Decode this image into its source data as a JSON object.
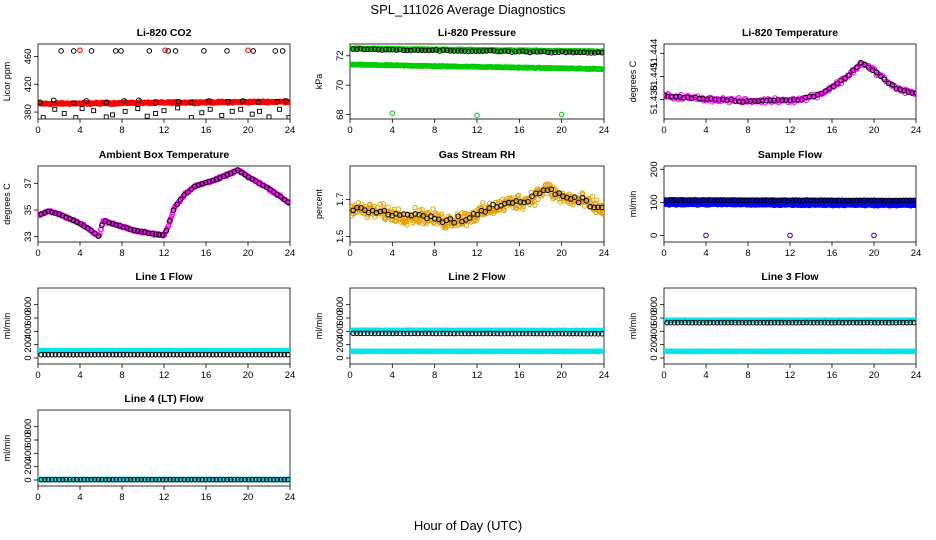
{
  "figure": {
    "title": "SPL_111026  Average Diagnostics",
    "xlabel": "Hour of Day (UTC)"
  },
  "colors": {
    "black": "#000000",
    "red": "#ff0000",
    "green": "#00cc00",
    "magenta": "#ff00ff",
    "orange": "#e6a000",
    "blue": "#0000ff",
    "cyan": "#00e5ee"
  },
  "chart_data": [
    {
      "type": "scatter",
      "title": "Li-820 CO2",
      "ylabel": "Licor ppm",
      "xlim": [
        0,
        24
      ],
      "xticks": [
        0,
        4,
        8,
        12,
        16,
        20,
        24
      ],
      "ylim": [
        370,
        478
      ],
      "yticks": [
        380,
        420,
        460
      ],
      "series": [
        {
          "color": "#ff0000",
          "marker": "dense-band",
          "x_range": [
            0,
            24
          ],
          "y_start": 392,
          "y_end": 395,
          "noise": 2
        },
        {
          "color": "#000000",
          "marker": "circle",
          "x": [
            0.2,
            1.5,
            3.4,
            4.6,
            6.5,
            8.2,
            9.6,
            11.2,
            13.4,
            14.6,
            16.3,
            18.1,
            19.5,
            21.0,
            22.8,
            23.6
          ],
          "y": [
            394,
            397,
            393,
            396,
            394,
            396,
            397,
            393,
            395,
            394,
            396,
            395,
            396,
            394,
            395,
            396
          ]
        },
        {
          "color": "#000000",
          "marker": "circle",
          "x": [
            2.2,
            3.4,
            5.1,
            7.4,
            7.9,
            10.6,
            12.4,
            13.1,
            15.8,
            18.0,
            20.5,
            22.6,
            23.3
          ],
          "y": [
            468,
            468,
            468,
            468,
            468,
            468,
            468,
            468,
            468,
            468,
            468,
            468,
            468
          ]
        },
        {
          "color": "#ff0000",
          "marker": "circle",
          "x": [
            4.0,
            12.1,
            20.0
          ],
          "y": [
            469,
            469,
            469
          ]
        },
        {
          "color": "#000000",
          "marker": "square",
          "x": [
            0.5,
            1.6,
            2.5,
            3.6,
            4.2,
            5.3,
            6.5,
            7.1,
            8.3,
            9.5,
            10.4,
            11.2,
            12.0,
            13.3,
            14.6,
            15.6,
            16.4,
            17.5,
            18.5,
            19.3,
            20.4,
            21.1,
            22.0,
            23.0,
            23.9
          ],
          "y": [
            372,
            384,
            378,
            372,
            385,
            382,
            373,
            376,
            381,
            385,
            374,
            378,
            382,
            386,
            372,
            379,
            384,
            375,
            381,
            384,
            377,
            381,
            373,
            384,
            372
          ]
        }
      ]
    },
    {
      "type": "scatter",
      "title": "Li-820 Pressure",
      "ylabel": "kPa",
      "xlim": [
        0,
        24
      ],
      "xticks": [
        0,
        4,
        8,
        12,
        16,
        20,
        24
      ],
      "ylim": [
        67.7,
        72.8
      ],
      "yticks": [
        68,
        70,
        72
      ],
      "series": [
        {
          "color": "#00cc00",
          "marker": "dense-band",
          "x_range": [
            0,
            24
          ],
          "y_start": 72.5,
          "y_end": 72.3,
          "noise": 0.05
        },
        {
          "color": "#00cc00",
          "marker": "dense-band",
          "x_range": [
            0,
            24
          ],
          "y_start": 71.4,
          "y_end": 71.1,
          "noise": 0.05
        },
        {
          "color": "#000000",
          "marker": "circle",
          "x_range": [
            0.3,
            23.8
          ],
          "count": 70,
          "y_start": 72.45,
          "y_end": 72.2,
          "noise": 0.06
        },
        {
          "color": "#00cc00",
          "marker": "circle",
          "x": [
            4.0,
            12.0,
            20.0
          ],
          "y": [
            68.1,
            67.95,
            68.0
          ]
        }
      ]
    },
    {
      "type": "scatter",
      "title": "Li-820 Temperature",
      "ylabel": "degrees C",
      "xlim": [
        0,
        24
      ],
      "xticks": [
        0,
        4,
        8,
        12,
        16,
        20,
        24
      ],
      "ylim": [
        51.4355,
        51.4452
      ],
      "yticks": [
        51.438,
        51.441,
        51.444
      ],
      "series": [
        {
          "color": "#ff00ff",
          "marker": "circle",
          "profile": "temp-peak",
          "count": 210,
          "noise": 0.00045
        },
        {
          "color": "#000000",
          "marker": "circle",
          "profile": "temp-peak",
          "count": 65,
          "noise": 0.00018
        }
      ]
    },
    {
      "type": "scatter",
      "title": "Ambient Box Temperature",
      "ylabel": "degrees C",
      "xlim": [
        0,
        24
      ],
      "xticks": [
        0,
        4,
        8,
        12,
        16,
        20,
        24
      ],
      "ylim": [
        32.6,
        38.3
      ],
      "yticks": [
        33,
        35,
        37
      ],
      "series": [
        {
          "color": "#ff00ff",
          "marker": "dense-band",
          "profile": "ambient",
          "x_range": [
            0,
            24
          ],
          "noise": 0.12
        },
        {
          "color": "#000000",
          "marker": "circle",
          "profile": "ambient",
          "x_range": [
            0.3,
            23.8
          ],
          "count": 70,
          "noise": 0.03
        }
      ]
    },
    {
      "type": "scatter",
      "title": "Gas Stream RH",
      "ylabel": "percent",
      "xlim": [
        0,
        24
      ],
      "xticks": [
        0,
        4,
        8,
        12,
        16,
        20,
        24
      ],
      "ylim": [
        1.47,
        1.88
      ],
      "yticks": [
        1.5,
        1.7
      ],
      "series": [
        {
          "color": "#e6a000",
          "marker": "dense-band",
          "profile": "rh",
          "x_range": [
            0,
            24
          ],
          "noise": 0.06
        },
        {
          "color": "#000000",
          "marker": "circle",
          "profile": "rh",
          "x_range": [
            0.3,
            23.8
          ],
          "count": 65,
          "noise": 0.025
        }
      ]
    },
    {
      "type": "scatter",
      "title": "Sample Flow",
      "ylabel": "ml/min",
      "xlim": [
        0,
        24
      ],
      "xticks": [
        0,
        4,
        8,
        12,
        16,
        20,
        24
      ],
      "ylim": [
        -20,
        210
      ],
      "yticks": [
        0,
        100,
        200
      ],
      "series": [
        {
          "color": "#0000ff",
          "marker": "dense-band",
          "x_range": [
            0,
            24
          ],
          "y_start": 95,
          "y_end": 92,
          "noise": 4
        },
        {
          "color": "#0000ff",
          "marker": "dense-band",
          "x_range": [
            0,
            24
          ],
          "y_start": 107,
          "y_end": 104,
          "noise": 2
        },
        {
          "color": "#000000",
          "marker": "circle",
          "x_range": [
            0.3,
            23.8
          ],
          "count": 70,
          "y_start": 107,
          "y_end": 106,
          "noise": 1
        },
        {
          "color": "#0000ff",
          "marker": "circle",
          "x": [
            4.0,
            12.0,
            20.0
          ],
          "y": [
            0,
            0,
            0
          ]
        }
      ]
    },
    {
      "type": "scatter",
      "title": "Line 1 Flow",
      "ylabel": "ml/min",
      "xlim": [
        0,
        24
      ],
      "xticks": [
        0,
        4,
        8,
        12,
        16,
        20,
        24
      ],
      "ylim": [
        -90,
        1050
      ],
      "yticks": [
        0,
        200,
        400,
        600,
        800
      ],
      "series": [
        {
          "color": "#00e5ee",
          "marker": "dense-band",
          "x_range": [
            0,
            24
          ],
          "y_start": 110,
          "y_end": 110,
          "noise": 6
        },
        {
          "color": "#000000",
          "marker": "circle",
          "x_range": [
            0.3,
            23.8
          ],
          "count": 70,
          "y_start": 50,
          "y_end": 50,
          "noise": 0
        }
      ]
    },
    {
      "type": "scatter",
      "title": "Line 2 Flow",
      "ylabel": "ml/min",
      "xlim": [
        0,
        24
      ],
      "xticks": [
        0,
        4,
        8,
        12,
        16,
        20,
        24
      ],
      "ylim": [
        -90,
        1050
      ],
      "yticks": [
        0,
        200,
        400,
        600,
        800
      ],
      "series": [
        {
          "color": "#00e5ee",
          "marker": "dense-band",
          "x_range": [
            0,
            24
          ],
          "y_start": 415,
          "y_end": 412,
          "noise": 6
        },
        {
          "color": "#00e5ee",
          "marker": "dense-band",
          "x_range": [
            0,
            24
          ],
          "y_start": 100,
          "y_end": 100,
          "noise": 5
        },
        {
          "color": "#000000",
          "marker": "circle",
          "x_range": [
            0.3,
            23.8
          ],
          "count": 70,
          "y_start": 370,
          "y_end": 365,
          "noise": 2
        }
      ]
    },
    {
      "type": "scatter",
      "title": "Line 3 Flow",
      "ylabel": "ml/min",
      "xlim": [
        0,
        24
      ],
      "xticks": [
        0,
        4,
        8,
        12,
        16,
        20,
        24
      ],
      "ylim": [
        -90,
        1050
      ],
      "yticks": [
        0,
        200,
        400,
        600,
        800
      ],
      "series": [
        {
          "color": "#00e5ee",
          "marker": "dense-band",
          "x_range": [
            0,
            24
          ],
          "y_start": 565,
          "y_end": 565,
          "noise": 5
        },
        {
          "color": "#00e5ee",
          "marker": "dense-band",
          "x_range": [
            0,
            24
          ],
          "y_start": 100,
          "y_end": 100,
          "noise": 5
        },
        {
          "color": "#000000",
          "marker": "circle",
          "x_range": [
            0.3,
            23.8
          ],
          "count": 70,
          "y_start": 530,
          "y_end": 530,
          "noise": 2
        }
      ]
    },
    {
      "type": "scatter",
      "title": "Line 4 (LT) Flow",
      "ylabel": "ml/min",
      "xlim": [
        0,
        24
      ],
      "xticks": [
        0,
        4,
        8,
        12,
        16,
        20,
        24
      ],
      "ylim": [
        -90,
        1050
      ],
      "yticks": [
        0,
        200,
        400,
        600,
        800
      ],
      "series": [
        {
          "color": "#00e5ee",
          "marker": "dense-band",
          "x_range": [
            0,
            24
          ],
          "y_start": 8,
          "y_end": 8,
          "noise": 3
        },
        {
          "color": "#000000",
          "marker": "circle",
          "x_range": [
            0.3,
            23.8
          ],
          "count": 70,
          "y_start": 5,
          "y_end": 5,
          "noise": 0
        }
      ]
    }
  ]
}
